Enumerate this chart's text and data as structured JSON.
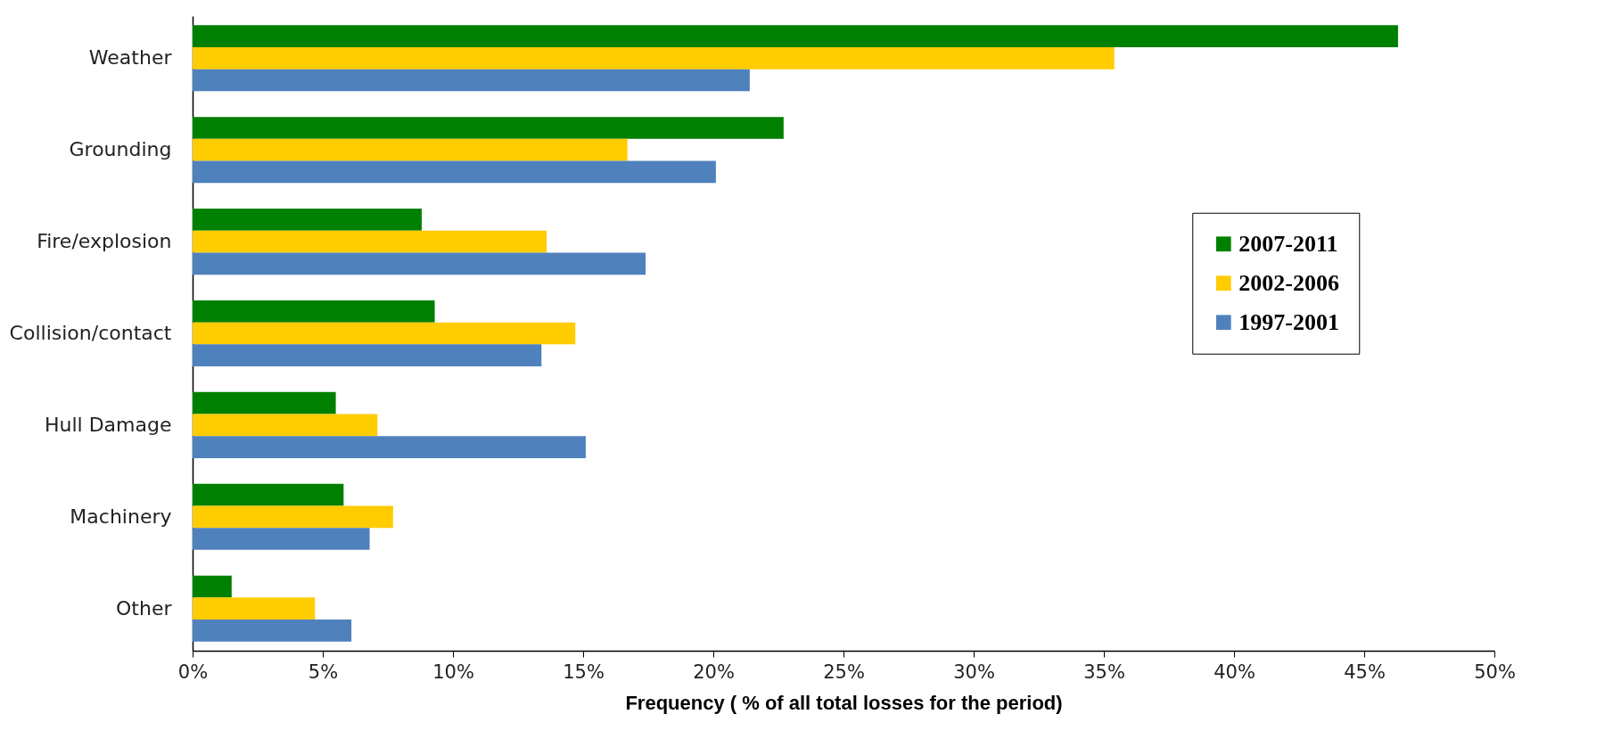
{
  "chart_data": {
    "type": "bar",
    "orientation": "horizontal",
    "xlabel": "Frequency  ( % of all total losses  for the period)",
    "categories": [
      "Weather",
      "Grounding",
      "Fire/explosion",
      "Collision/contact",
      "Hull Damage",
      "Machinery",
      "Other"
    ],
    "series": [
      {
        "name": "2007-2011",
        "color": "#008000",
        "values": [
          46.3,
          22.7,
          8.8,
          9.3,
          5.5,
          5.8,
          1.5
        ]
      },
      {
        "name": "2002-2006",
        "color": "#ffcc00",
        "values": [
          35.4,
          16.7,
          13.6,
          14.7,
          7.1,
          7.7,
          4.7
        ]
      },
      {
        "name": "1997-2001",
        "color": "#4f81bd",
        "values": [
          21.4,
          20.1,
          17.4,
          13.4,
          15.1,
          6.8,
          6.1
        ]
      }
    ],
    "xlim": [
      0,
      50
    ],
    "xticks": [
      {
        "value": 0,
        "label": "0%"
      },
      {
        "value": 5,
        "label": "5%"
      },
      {
        "value": 10,
        "label": "10%"
      },
      {
        "value": 15,
        "label": "15%"
      },
      {
        "value": 20,
        "label": "20%"
      },
      {
        "value": 25,
        "label": "25%"
      },
      {
        "value": 30,
        "label": "30%"
      },
      {
        "value": 35,
        "label": "35%"
      },
      {
        "value": 40,
        "label": "40%"
      },
      {
        "value": 45,
        "label": "45%"
      },
      {
        "value": 50,
        "label": "50%"
      }
    ],
    "grid": false,
    "legend": "right"
  }
}
